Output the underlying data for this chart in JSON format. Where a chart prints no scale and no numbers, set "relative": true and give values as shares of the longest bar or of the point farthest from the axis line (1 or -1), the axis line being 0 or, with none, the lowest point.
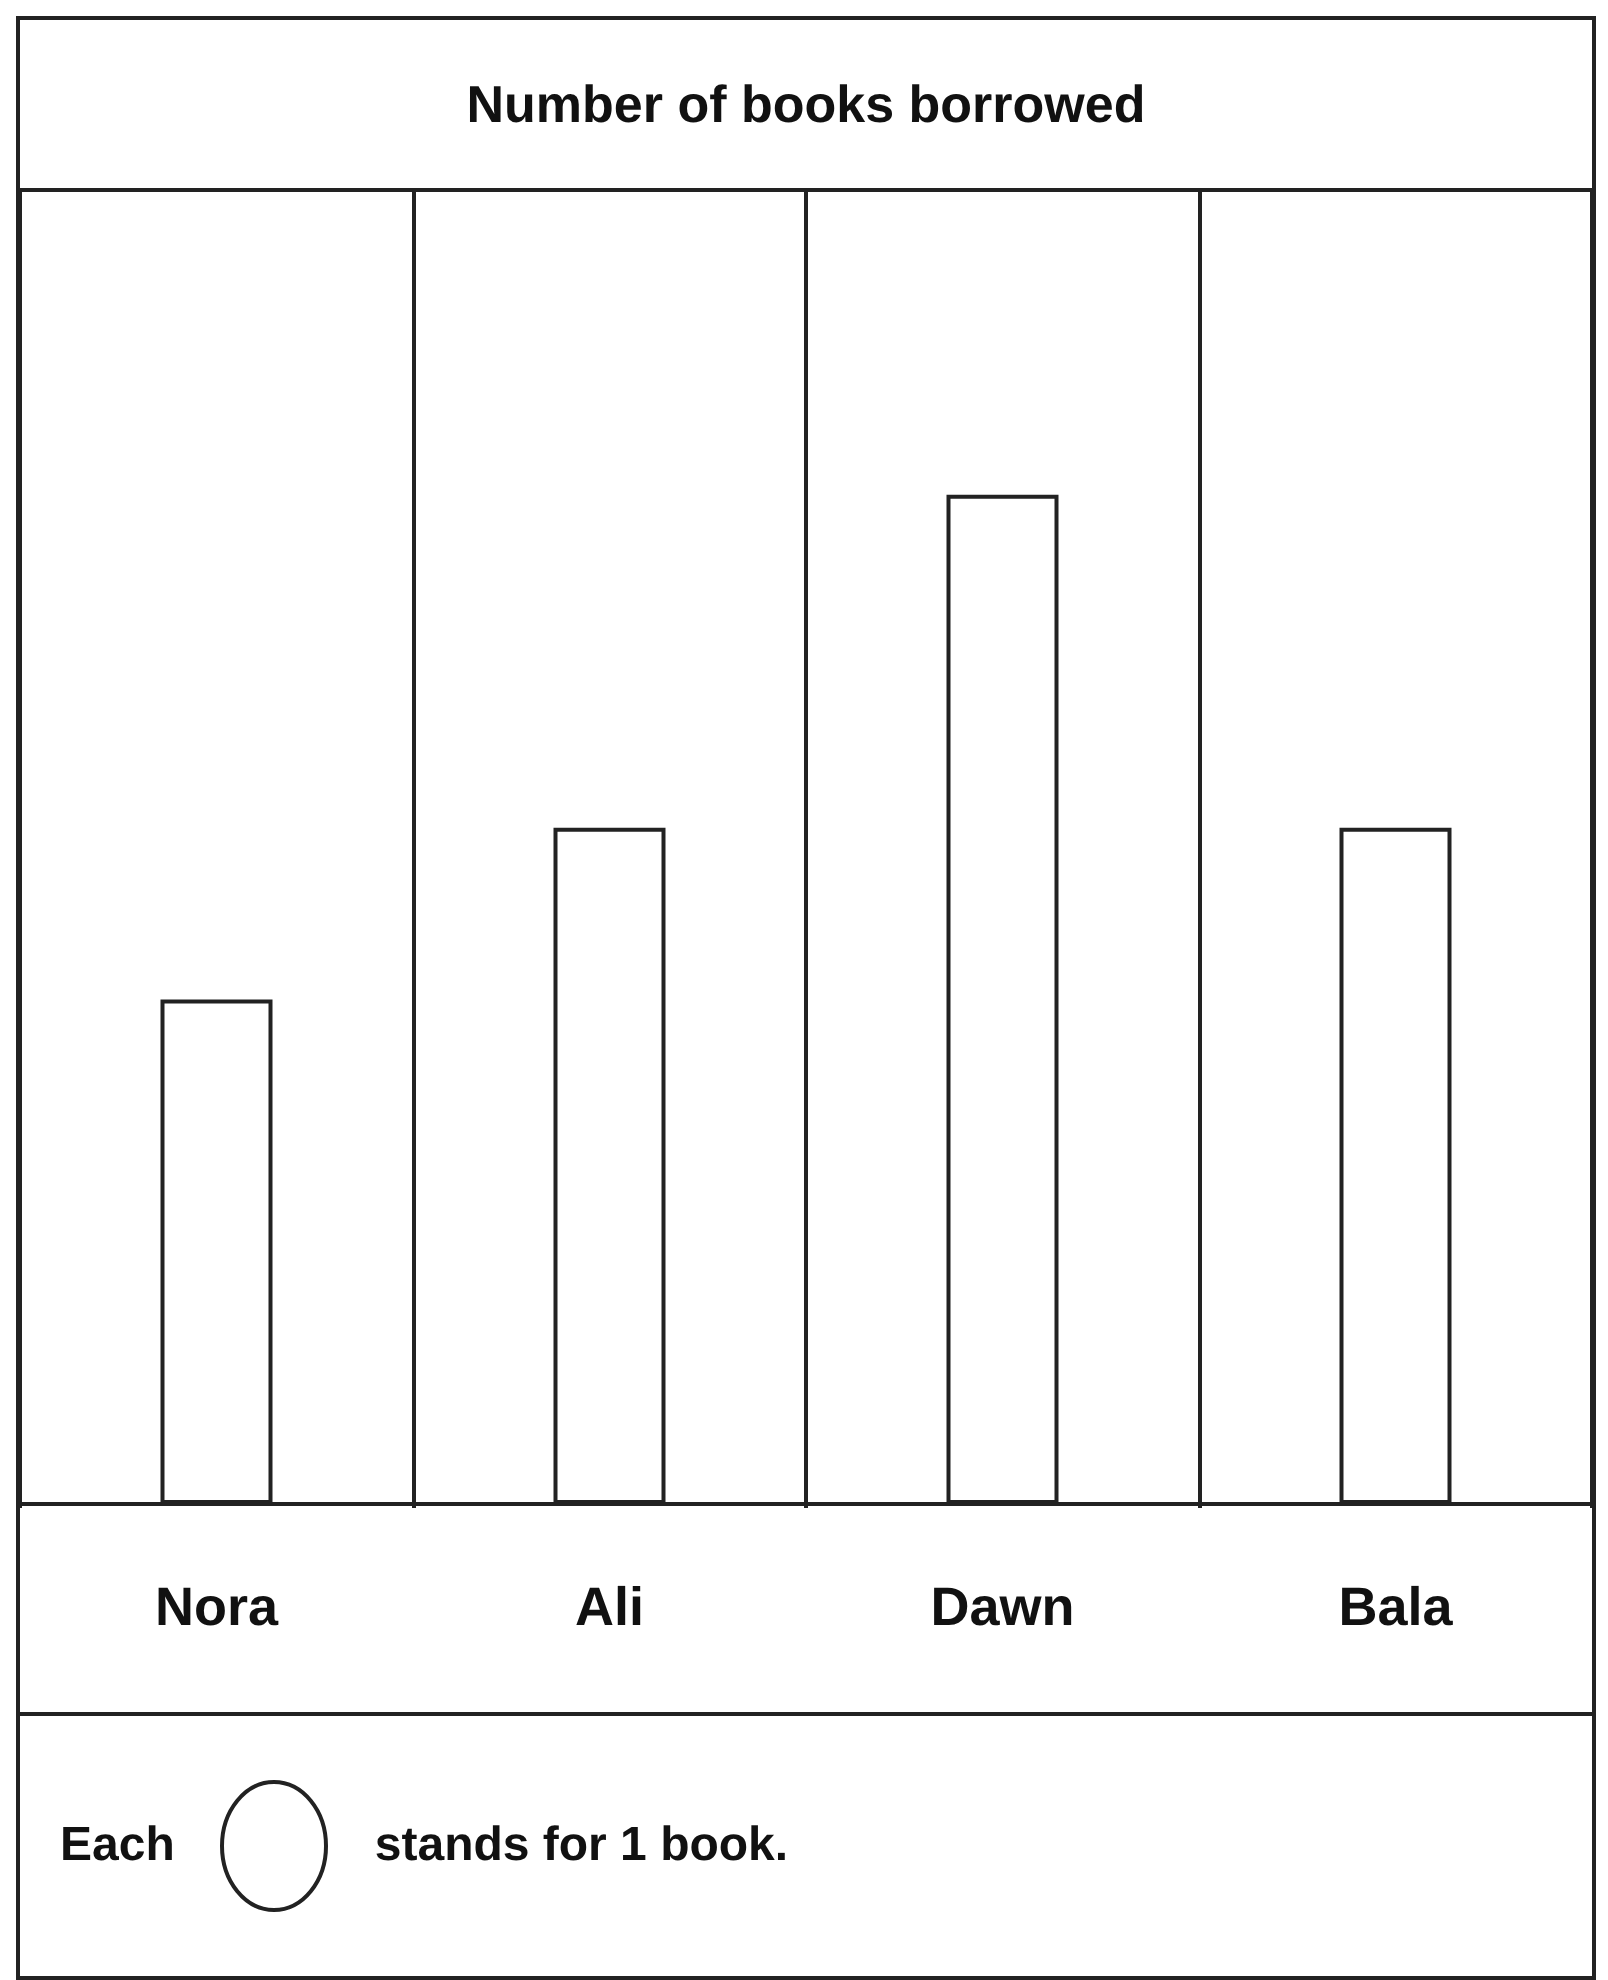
{
  "chart_data": {
    "type": "bar",
    "title": "Number of books borrowed",
    "categories": [
      "Nora",
      "Ali",
      "Dawn",
      "Bala"
    ],
    "values": [
      0.5,
      0.67,
      1,
      0.67
    ],
    "relative": true,
    "color": "#ffffff",
    "grid": "x",
    "annotations": [
      "Each",
      "stands for 1 book."
    ]
  }
}
